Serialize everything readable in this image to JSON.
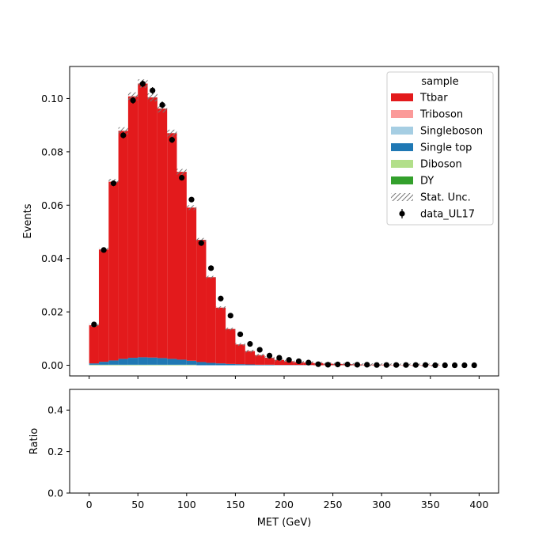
{
  "chart_data": [
    {
      "type": "bar",
      "stacked": true,
      "histogram": true,
      "ylabel": "Events",
      "ylim": [
        -0.004,
        0.112
      ],
      "xlim": [
        -20,
        420
      ],
      "xticks": [
        0,
        50,
        100,
        150,
        200,
        250,
        300,
        350,
        400
      ],
      "yticks": [
        0.0,
        0.02,
        0.04,
        0.06,
        0.08,
        0.1
      ],
      "ytick_labels": [
        "0.00",
        "0.02",
        "0.04",
        "0.06",
        "0.08",
        "0.10"
      ],
      "legend_title": "sample",
      "legend_position": "top-right",
      "bin_edges": [
        0,
        10,
        20,
        30,
        40,
        50,
        60,
        70,
        80,
        90,
        100,
        110,
        120,
        130,
        140,
        150,
        160,
        170,
        180,
        190,
        200,
        210,
        220,
        230,
        240,
        250,
        260,
        270,
        280,
        290,
        300,
        310,
        320,
        330,
        340,
        350,
        360,
        370,
        380,
        390,
        400
      ],
      "series": [
        {
          "name": "DY",
          "color": "#33a02c",
          "values": [
            0.0001,
            0.0001,
            0.0001,
            0.0001,
            0.0001,
            0.0001,
            0.0001,
            0.0001,
            0.0001,
            0.0001,
            0.0001,
            0,
            0,
            0,
            0,
            0,
            0,
            0,
            0,
            0,
            0,
            0,
            0,
            0,
            0,
            0,
            0,
            0,
            0,
            0,
            0,
            0,
            0,
            0,
            0,
            0,
            0,
            0,
            0,
            0
          ]
        },
        {
          "name": "Diboson",
          "color": "#b2df8a",
          "values": [
            0.0001,
            0.0001,
            0.0001,
            0.0001,
            0.0001,
            0.0001,
            0.0001,
            0.0001,
            0.0001,
            0.0001,
            0.0001,
            0,
            0,
            0,
            0,
            0,
            0,
            0,
            0,
            0,
            0,
            0,
            0,
            0,
            0,
            0,
            0,
            0,
            0,
            0,
            0,
            0,
            0,
            0,
            0,
            0,
            0,
            0,
            0,
            0
          ]
        },
        {
          "name": "Single top",
          "color": "#1f78b4",
          "values": [
            0.0005,
            0.0011,
            0.0016,
            0.0022,
            0.0026,
            0.0028,
            0.0027,
            0.0025,
            0.0022,
            0.0019,
            0.0015,
            0.0012,
            0.0009,
            0.0007,
            0.0005,
            0.0004,
            0.0003,
            0.0002,
            0.0002,
            0.0001,
            0.0001,
            0.0001,
            0.0001,
            0,
            0,
            0,
            0,
            0,
            0,
            0,
            0,
            0,
            0,
            0,
            0,
            0,
            0,
            0,
            0,
            0
          ]
        },
        {
          "name": "Singleboson",
          "color": "#a6cee3",
          "values": [
            0,
            0,
            0,
            0,
            0,
            0,
            0,
            0,
            0,
            0,
            0,
            0,
            0,
            0,
            0,
            0,
            0,
            0,
            0,
            0,
            0,
            0,
            0,
            0,
            0,
            0,
            0,
            0,
            0,
            0,
            0,
            0,
            0,
            0,
            0,
            0,
            0,
            0,
            0,
            0
          ]
        },
        {
          "name": "Triboson",
          "color": "#fb9a99",
          "values": [
            0,
            0,
            0,
            0,
            0,
            0,
            0,
            0,
            0,
            0,
            0,
            0,
            0,
            0,
            0,
            0,
            0,
            0,
            0,
            0,
            0,
            0,
            0,
            0,
            0,
            0,
            0,
            0,
            0,
            0,
            0,
            0,
            0,
            0,
            0,
            0,
            0,
            0,
            0,
            0
          ]
        },
        {
          "name": "Ttbar",
          "color": "#e31a1c",
          "values": [
            0.0143,
            0.0421,
            0.067,
            0.0855,
            0.098,
            0.1026,
            0.0975,
            0.0935,
            0.0846,
            0.0704,
            0.0574,
            0.0458,
            0.0321,
            0.0209,
            0.0131,
            0.0074,
            0.005,
            0.0036,
            0.0026,
            0.0019,
            0.0014,
            0.0011,
            0.0009,
            0.0008,
            0.0006,
            0.0005,
            0.0004,
            0.0003,
            0.0002,
            0.0002,
            0.0002,
            0.0001,
            0.0001,
            0.0001,
            0.0001,
            0.0001,
            0,
            0,
            0,
            0
          ]
        }
      ],
      "stat_unc": {
        "name": "Stat. Unc.",
        "rel": 0.015
      },
      "data": {
        "name": "data_UL17",
        "color": "#000000",
        "x": [
          5,
          15,
          25,
          35,
          45,
          55,
          65,
          75,
          85,
          95,
          105,
          115,
          125,
          135,
          145,
          155,
          165,
          175,
          185,
          195,
          205,
          215,
          225,
          235,
          245,
          255,
          265,
          275,
          285,
          295,
          305,
          315,
          325,
          335,
          345,
          355,
          365,
          375,
          385,
          395
        ],
        "y": [
          0.0153,
          0.0432,
          0.0682,
          0.0862,
          0.0993,
          0.1055,
          0.103,
          0.0976,
          0.0845,
          0.0703,
          0.0621,
          0.0458,
          0.0364,
          0.025,
          0.0186,
          0.0116,
          0.008,
          0.0058,
          0.0036,
          0.0028,
          0.002,
          0.0015,
          0.001,
          0.0004,
          0.0002,
          0.0003,
          0.0003,
          0.0002,
          0.0002,
          0.0001,
          0.0001,
          0.0001,
          0.0001,
          0.0001,
          0.0001,
          0.0,
          0.0,
          0.0,
          0.0,
          0.0
        ]
      },
      "legend_entries": [
        "Ttbar",
        "Triboson",
        "Singleboson",
        "Single top",
        "Diboson",
        "DY",
        "Stat. Unc.",
        "data_UL17"
      ]
    },
    {
      "type": "line",
      "ylabel": "Ratio",
      "xlabel": "MET (GeV)",
      "ylim": [
        0,
        0.5
      ],
      "xlim": [
        -20,
        420
      ],
      "xticks": [
        0,
        50,
        100,
        150,
        200,
        250,
        300,
        350,
        400
      ],
      "yticks": [
        0.0,
        0.2,
        0.4
      ],
      "ytick_labels": [
        "0.0",
        "0.2",
        "0.4"
      ],
      "series": []
    }
  ]
}
